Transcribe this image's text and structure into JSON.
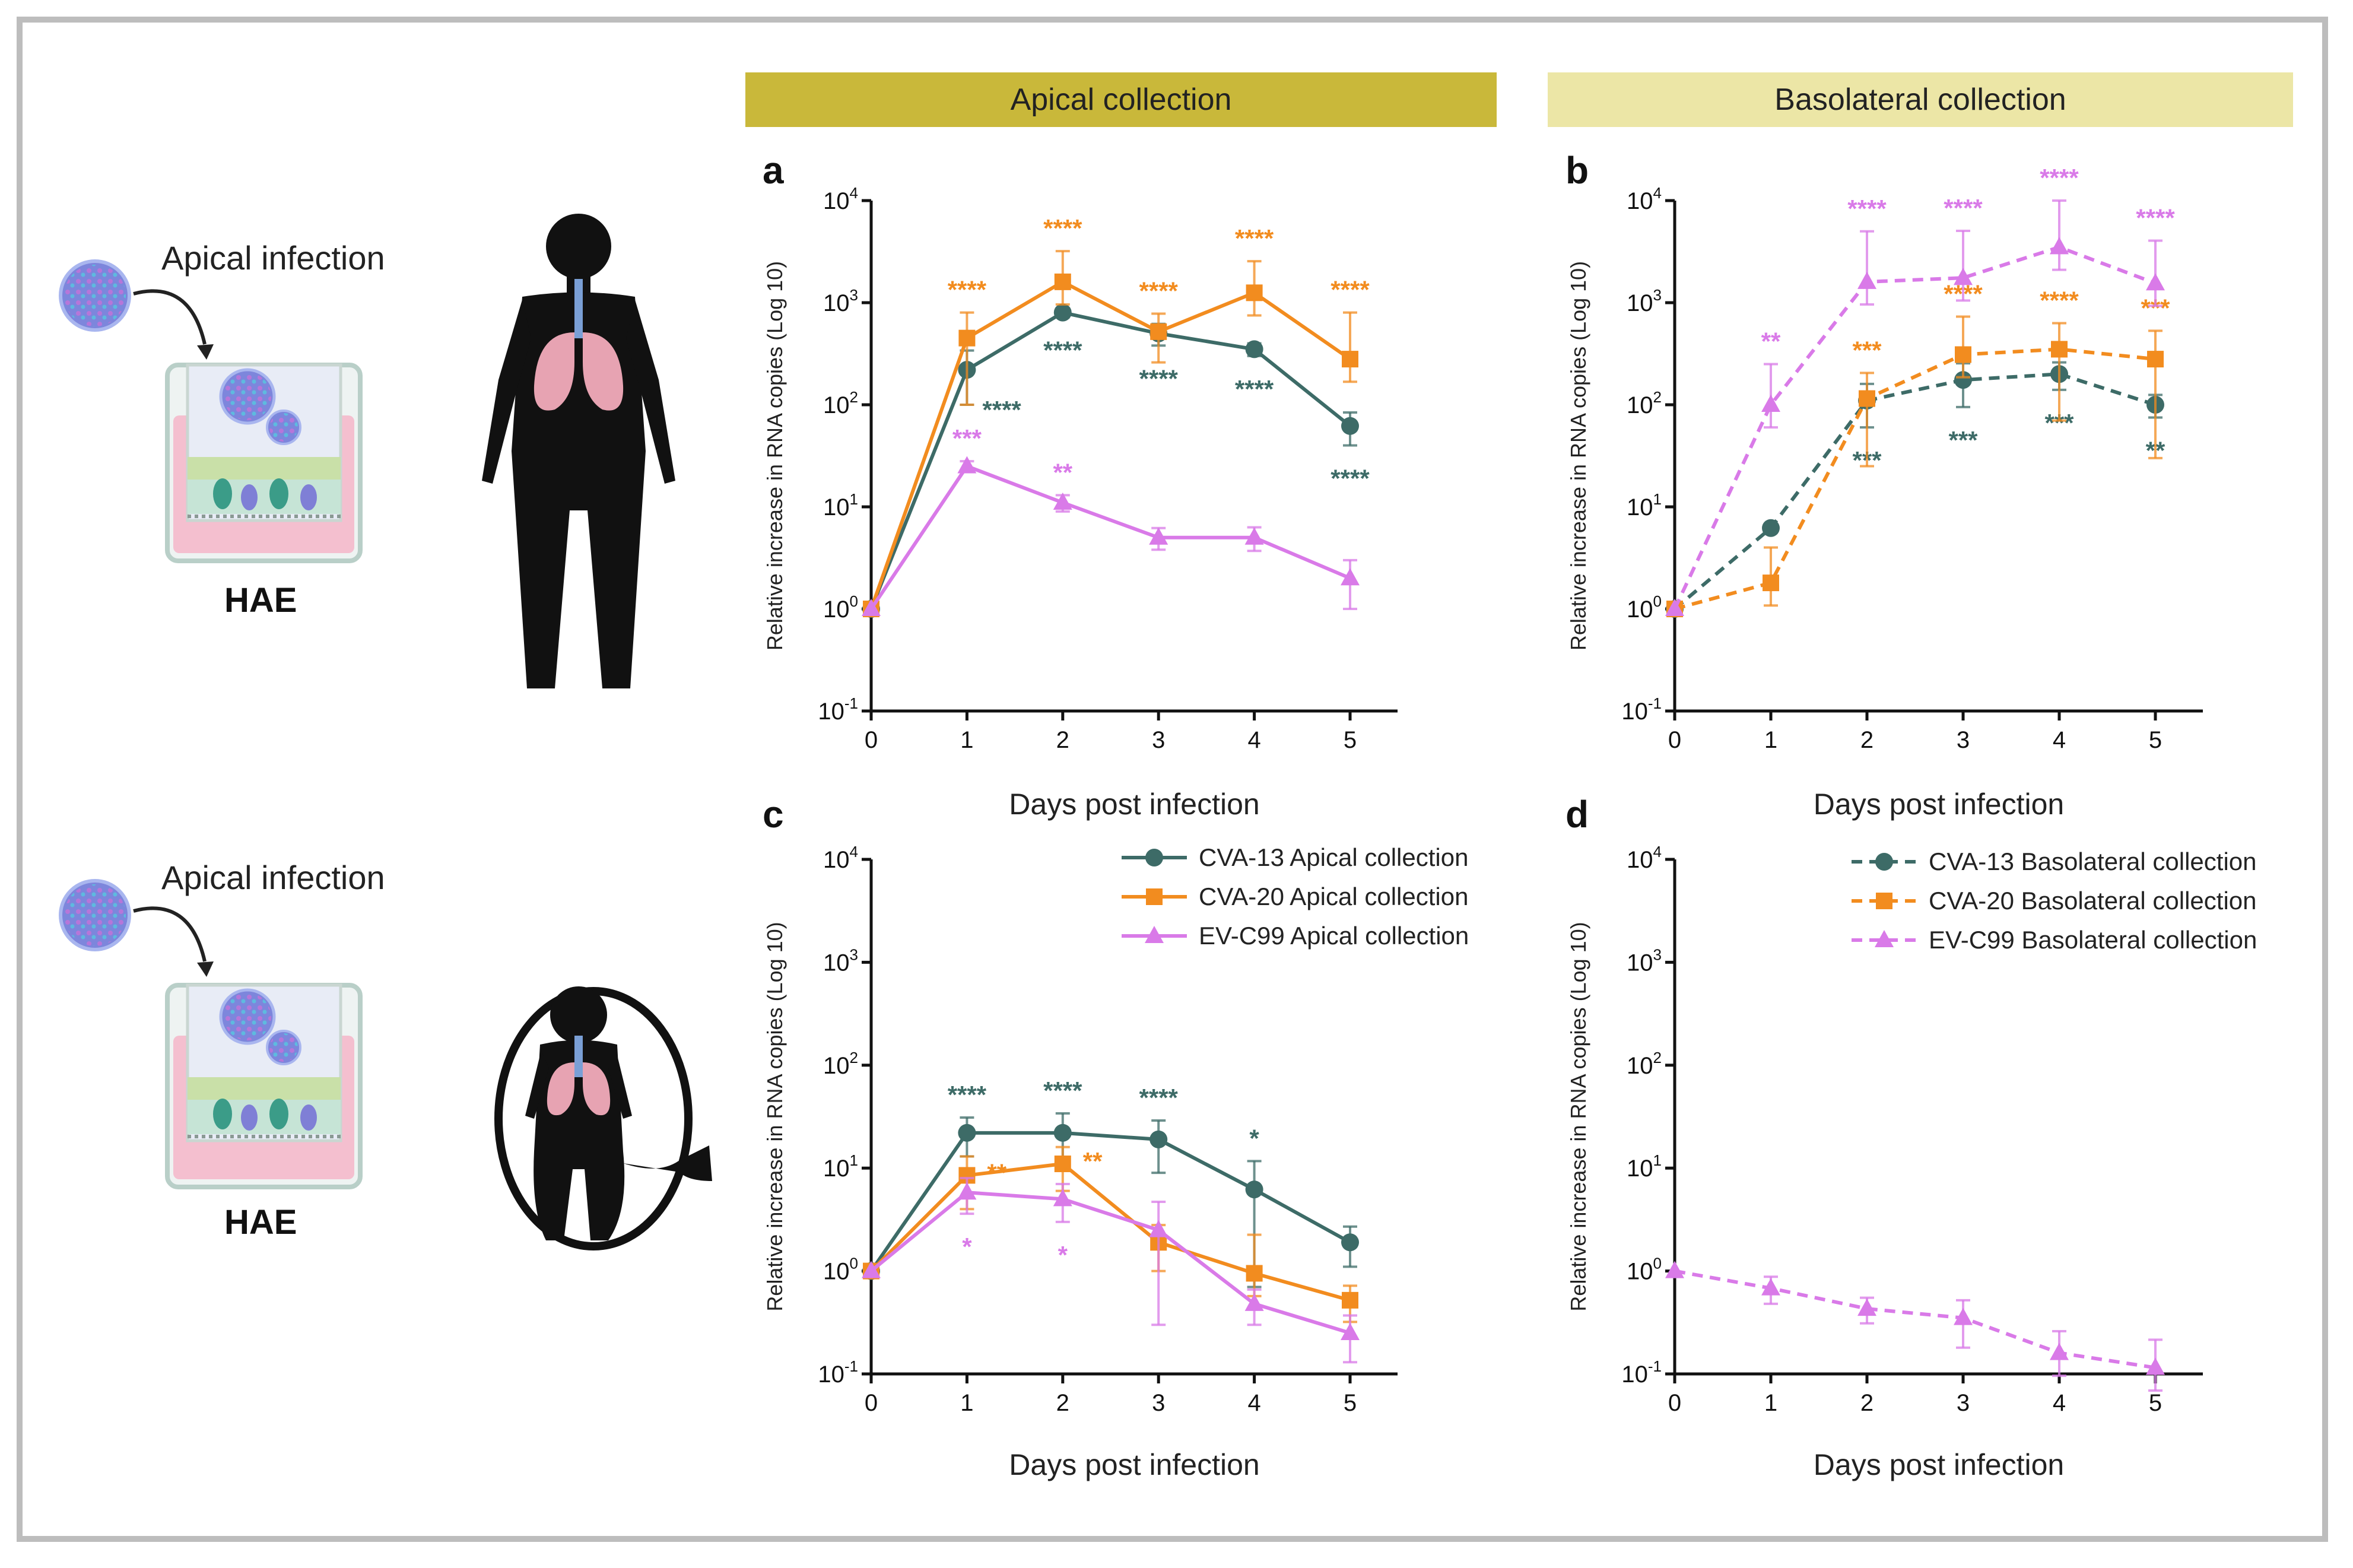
{
  "headers": {
    "apical": "Apical collection",
    "basolateral": "Basolateral collection"
  },
  "colors": {
    "banner_apical": "#c9b83a",
    "banner_baso": "#ece6a6",
    "cva13": "#3d6b67",
    "cva20": "#f28c1f",
    "evc99": "#d97ae8"
  },
  "illustrations": {
    "top": {
      "infection_label": "Apical infection",
      "culture_label": "HAE",
      "figure": "adult-human-lungs-icon"
    },
    "bottom": {
      "infection_label": "Apical infection",
      "culture_label": "HAE",
      "figure": "fetus-lungs-icon"
    }
  },
  "chart_data": [
    {
      "id": "a",
      "type": "line",
      "scale": "log",
      "xlabel": "Days post infection",
      "ylabel": "Relative increase in RNA copies (Log 10)",
      "x": [
        0,
        1,
        2,
        3,
        4,
        5
      ],
      "xlim": [
        0,
        5
      ],
      "ylim": [
        0.1,
        10000
      ],
      "yticks": [
        {
          "exp": "-1",
          "value": 0.1
        },
        {
          "exp": "0",
          "value": 1
        },
        {
          "exp": "1",
          "value": 10
        },
        {
          "exp": "2",
          "value": 100
        },
        {
          "exp": "3",
          "value": 1000
        },
        {
          "exp": "4",
          "value": 10000
        }
      ],
      "line_style": "solid",
      "series": [
        {
          "key": "cva13",
          "color": "#3d6b67",
          "marker": "circle",
          "values": [
            1,
            220,
            800,
            500,
            350,
            62
          ],
          "err": [
            0,
            120,
            80,
            120,
            50,
            22
          ],
          "stars": [
            "",
            "****",
            "****",
            "****",
            "****",
            "****"
          ],
          "star_pos": "below"
        },
        {
          "key": "cva20",
          "color": "#f28c1f",
          "marker": "square",
          "values": [
            1,
            450,
            1600,
            520,
            1250,
            280
          ],
          "err": [
            0,
            350,
            1600,
            260,
            1300,
            520
          ],
          "stars": [
            "",
            "****",
            "****",
            "****",
            "****",
            "****"
          ],
          "star_pos": "above"
        },
        {
          "key": "evc99",
          "color": "#d97ae8",
          "marker": "triangle",
          "values": [
            1,
            25,
            11,
            5,
            5,
            2
          ],
          "err": [
            0,
            3,
            2,
            1.2,
            1.3,
            1
          ],
          "stars": [
            "",
            "***",
            "**",
            "",
            "",
            ""
          ],
          "star_pos": "above"
        }
      ]
    },
    {
      "id": "b",
      "type": "line",
      "scale": "log",
      "xlabel": "Days post infection",
      "ylabel": "Relative increase in RNA copies (Log 10)",
      "x": [
        0,
        1,
        2,
        3,
        4,
        5
      ],
      "xlim": [
        0,
        5
      ],
      "ylim": [
        0.1,
        10000
      ],
      "yticks": [
        {
          "exp": "-1",
          "value": 0.1
        },
        {
          "exp": "0",
          "value": 1
        },
        {
          "exp": "1",
          "value": 10
        },
        {
          "exp": "2",
          "value": 100
        },
        {
          "exp": "3",
          "value": 1000
        },
        {
          "exp": "4",
          "value": 10000
        }
      ],
      "line_style": "dashed",
      "series": [
        {
          "key": "cva13",
          "color": "#3d6b67",
          "marker": "circle",
          "values": [
            1,
            6.2,
            110,
            175,
            200,
            100
          ],
          "err": [
            0,
            0.6,
            50,
            80,
            60,
            25
          ],
          "stars": [
            "",
            "",
            "***",
            "***",
            "***",
            "**"
          ],
          "star_pos": "below"
        },
        {
          "key": "cva20",
          "color": "#f28c1f",
          "marker": "square",
          "values": [
            1,
            1.8,
            115,
            310,
            350,
            280
          ],
          "err": [
            0,
            2.2,
            90,
            420,
            280,
            250
          ],
          "stars": [
            "",
            "",
            "***",
            "****",
            "****",
            "***"
          ],
          "star_pos": "above"
        },
        {
          "key": "evc99",
          "color": "#d97ae8",
          "marker": "triangle",
          "values": [
            1,
            100,
            1600,
            1750,
            3500,
            1550
          ],
          "err": [
            0,
            150,
            3400,
            3300,
            6500,
            2500
          ],
          "stars": [
            "",
            "**",
            "****",
            "****",
            "****",
            "****"
          ],
          "star_pos": "above"
        }
      ]
    },
    {
      "id": "c",
      "type": "line",
      "scale": "log",
      "xlabel": "Days post infection",
      "ylabel": "Relative increase in RNA copies (Log 10)",
      "x": [
        0,
        1,
        2,
        3,
        4,
        5
      ],
      "xlim": [
        0,
        5
      ],
      "ylim": [
        0.1,
        10000
      ],
      "yticks": [
        {
          "exp": "-1",
          "value": 0.1
        },
        {
          "exp": "0",
          "value": 1
        },
        {
          "exp": "1",
          "value": 10
        },
        {
          "exp": "2",
          "value": 100
        },
        {
          "exp": "3",
          "value": 1000
        },
        {
          "exp": "4",
          "value": 10000
        }
      ],
      "line_style": "solid",
      "legend": [
        "CVA-13 Apical collection",
        "CVA-20 Apical collection",
        "EV-C99 Apical collection"
      ],
      "legend_position": "top-right",
      "series": [
        {
          "key": "cva13",
          "color": "#3d6b67",
          "marker": "circle",
          "values": [
            1,
            22,
            22,
            19,
            6.2,
            1.9
          ],
          "err": [
            0,
            9,
            12,
            10,
            5.5,
            0.8
          ],
          "stars": [
            "",
            "****",
            "****",
            "****",
            "*",
            ""
          ],
          "star_pos": "above"
        },
        {
          "key": "cva20",
          "color": "#f28c1f",
          "marker": "square",
          "values": [
            1,
            8.5,
            11,
            1.9,
            0.95,
            0.52
          ],
          "err": [
            0,
            4.5,
            5,
            0.9,
            1.3,
            0.2
          ],
          "stars": [
            "",
            "**",
            "**",
            "",
            "",
            ""
          ],
          "star_pos": "right"
        },
        {
          "key": "evc99",
          "color": "#d97ae8",
          "marker": "triangle",
          "values": [
            1,
            5.8,
            5,
            2.5,
            0.48,
            0.25
          ],
          "err": [
            0,
            2.2,
            2,
            2.2,
            0.18,
            0.12
          ],
          "stars": [
            "",
            "*",
            "*",
            "",
            "",
            ""
          ],
          "star_pos": "below"
        }
      ]
    },
    {
      "id": "d",
      "type": "line",
      "scale": "log",
      "xlabel": "Days post infection",
      "ylabel": "Relative increase in RNA copies (Log 10)",
      "x": [
        0,
        1,
        2,
        3,
        4,
        5
      ],
      "xlim": [
        0,
        5
      ],
      "ylim": [
        0.1,
        10000
      ],
      "yticks": [
        {
          "exp": "-1",
          "value": 0.1
        },
        {
          "exp": "0",
          "value": 1
        },
        {
          "exp": "1",
          "value": 10
        },
        {
          "exp": "2",
          "value": 100
        },
        {
          "exp": "3",
          "value": 1000
        },
        {
          "exp": "4",
          "value": 10000
        }
      ],
      "line_style": "dashed",
      "legend": [
        "CVA-13 Basolateral collection",
        "CVA-20 Basolateral collection",
        "EV-C99 Basolateral collection"
      ],
      "legend_position": "top-right",
      "series": [
        {
          "key": "evc99",
          "color": "#d97ae8",
          "marker": "triangle",
          "values": [
            1,
            0.68,
            0.43,
            0.35,
            0.16,
            0.115
          ],
          "err": [
            0,
            0.2,
            0.12,
            0.17,
            0.1,
            0.1
          ],
          "stars": [
            "",
            "",
            "",
            "",
            "",
            ""
          ],
          "star_pos": "above"
        }
      ]
    }
  ]
}
